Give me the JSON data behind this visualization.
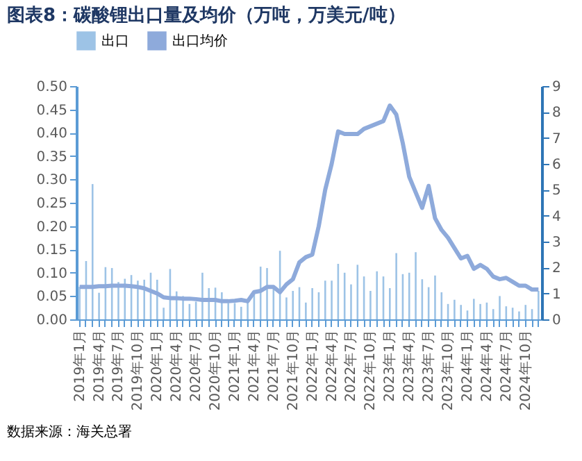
{
  "chart_data": {
    "type": "bar",
    "title": "图表8：碳酸锂出口量及均价（万吨，万美元/吨）",
    "categories": [
      "2019年1月",
      null,
      null,
      "2019年4月",
      null,
      null,
      "2019年7月",
      null,
      null,
      "2019年10月",
      null,
      null,
      "2020年1月",
      null,
      null,
      "2020年4月",
      null,
      null,
      "2020年7月",
      null,
      null,
      "2020年10月",
      null,
      null,
      "2021年1月",
      null,
      null,
      "2021年4月",
      null,
      null,
      "2021年7月",
      null,
      null,
      "2021年10月",
      null,
      null,
      "2022年1月",
      null,
      null,
      "2022年4月",
      null,
      null,
      "2022年7月",
      null,
      null,
      "2022年10月",
      null,
      null,
      "2023年1月",
      null,
      null,
      "2023年4月",
      null,
      null,
      "2023年7月",
      null,
      null,
      "2023年10月",
      null,
      null,
      "2024年1月",
      null,
      null,
      "2024年4月",
      null,
      null,
      "2024年7月",
      null,
      null,
      "2024年10月",
      null,
      null
    ],
    "series": [
      {
        "name": "出口",
        "color": "#9dc3e6",
        "values": [
          0.07,
          0.125,
          0.29,
          0.057,
          0.112,
          0.11,
          0.08,
          0.087,
          0.095,
          0.083,
          0.085,
          0.1,
          0.085,
          0.025,
          0.108,
          0.06,
          0.05,
          0.033,
          0.038,
          0.1,
          0.067,
          0.068,
          0.058,
          0.035,
          0.035,
          0.027,
          0.04,
          0.06,
          0.113,
          0.11,
          0.07,
          0.147,
          0.047,
          0.061,
          0.069,
          0.036,
          0.067,
          0.058,
          0.083,
          0.083,
          0.119,
          0.1,
          0.075,
          0.117,
          0.092,
          0.061,
          0.103,
          0.092,
          0.067,
          0.142,
          0.097,
          0.1,
          0.144,
          0.086,
          0.069,
          0.094,
          0.058,
          0.033,
          0.042,
          0.031,
          0.019,
          0.044,
          0.033,
          0.036,
          0.022,
          0.05,
          0.028,
          0.025,
          0.017,
          0.031,
          0.022,
          0.061
        ]
      },
      {
        "name": "出口均价",
        "type": "line",
        "axis": "y2",
        "color": "#8eaadb",
        "values": [
          1.25,
          1.25,
          1.25,
          1.28,
          1.28,
          1.3,
          1.3,
          1.3,
          1.28,
          1.25,
          1.2,
          1.1,
          1.0,
          0.85,
          0.82,
          0.82,
          0.8,
          0.8,
          0.78,
          0.75,
          0.75,
          0.75,
          0.7,
          0.7,
          0.72,
          0.75,
          0.7,
          1.05,
          1.1,
          1.25,
          1.25,
          1.05,
          1.35,
          1.55,
          2.2,
          2.4,
          2.5,
          3.6,
          5.0,
          6.0,
          7.25,
          7.15,
          7.15,
          7.15,
          7.35,
          7.45,
          7.55,
          7.65,
          8.25,
          7.9,
          6.8,
          5.5,
          4.9,
          4.3,
          5.15,
          3.9,
          3.45,
          3.15,
          2.75,
          2.35,
          2.45,
          1.95,
          2.1,
          1.95,
          1.65,
          1.55,
          1.6,
          1.45,
          1.3,
          1.3,
          1.15,
          1.15
        ]
      }
    ],
    "ylim": [
      0,
      0.5
    ],
    "yticks": [
      {
        "value": 0,
        "label": "0.00"
      },
      {
        "value": 0.05,
        "label": "0.05"
      },
      {
        "value": 0.1,
        "label": "0.10"
      },
      {
        "value": 0.15,
        "label": "0.15"
      },
      {
        "value": 0.2,
        "label": "0.20"
      },
      {
        "value": 0.25,
        "label": "0.25"
      },
      {
        "value": 0.3,
        "label": "0.30"
      },
      {
        "value": 0.35,
        "label": "0.35"
      },
      {
        "value": 0.4,
        "label": "0.40"
      },
      {
        "value": 0.45,
        "label": "0.45"
      },
      {
        "value": 0.5,
        "label": "0.50"
      }
    ],
    "y2lim": [
      0,
      9
    ],
    "y2ticks": [
      0,
      1,
      2,
      3,
      4,
      5,
      6,
      7,
      8,
      9
    ],
    "legend": "top",
    "grid": false,
    "annotations": [
      "数据来源：海关总署"
    ]
  }
}
